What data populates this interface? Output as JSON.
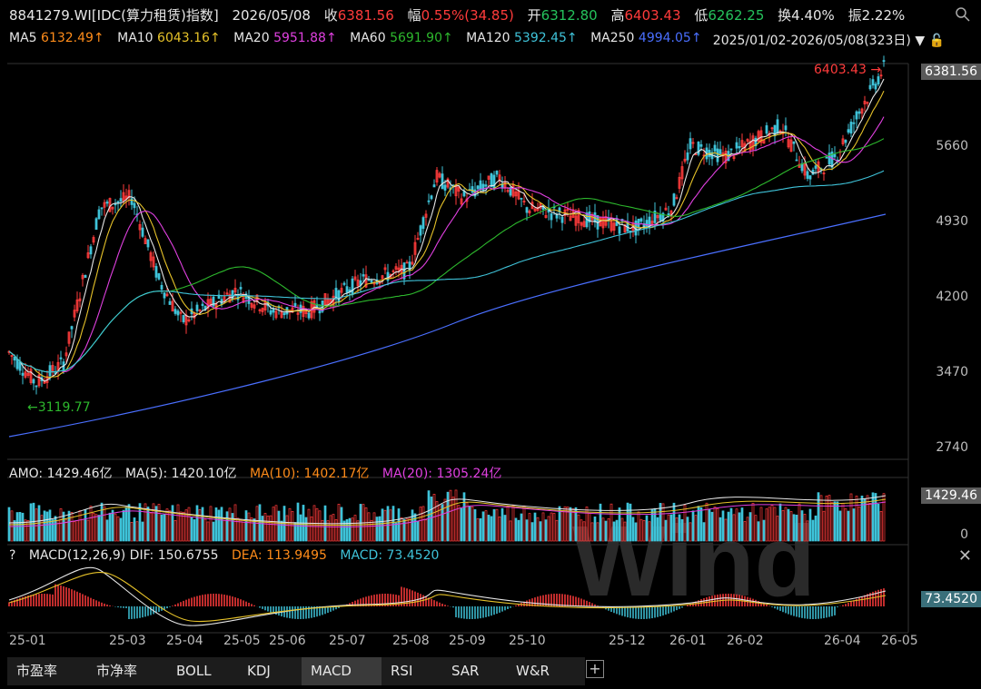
{
  "header": {
    "code": "8841279.WI[IDC(算力租赁)指数]",
    "date": "2026/05/08",
    "close_label": "收",
    "close_value": "6381.56",
    "change_label": "幅",
    "change_value": "0.55%(34.85)",
    "open_label": "开",
    "open_value": "6312.80",
    "high_label": "高",
    "high_value": "6403.43",
    "low_label": "低",
    "low_value": "6262.25",
    "turnover_label": "换",
    "turnover_value": "4.40%",
    "amplitude_label": "振",
    "amplitude_value": "2.22%"
  },
  "ma_bar": {
    "ma5_label": "MA5",
    "ma5_value": "6132.49↑",
    "ma10_label": "MA10",
    "ma10_value": "6043.16↑",
    "ma20_label": "MA20",
    "ma20_value": "5951.88↑",
    "ma60_label": "MA60",
    "ma60_value": "5691.90↑",
    "ma120_label": "MA120",
    "ma120_value": "5392.45↑",
    "ma250_label": "MA250",
    "ma250_value": "4994.05↑",
    "range": "2025/01/02-2026/05/08(323日)"
  },
  "price_axis": [
    "5660",
    "4930",
    "4200",
    "3470",
    "2740"
  ],
  "current_price": "6381.56",
  "high_marker": "6403.43",
  "low_marker": "←3119.77",
  "amo": {
    "label": "AMO: 1429.46亿",
    "ma5": "MA(5): 1420.10亿",
    "ma10": "MA(10): 1402.17亿",
    "ma20": "MA(20): 1305.24亿",
    "current": "1429.46",
    "zero": "0"
  },
  "macd": {
    "help": "?",
    "label": "MACD(12,26,9)",
    "dif": "DIF: 150.6755",
    "dea": "DEA: 113.9495",
    "macd": "MACD: 73.4520",
    "current": "73.4520",
    "close": "✕"
  },
  "x_axis": [
    "25-01",
    "25-03",
    "25-04",
    "25-05",
    "25-06",
    "25-07",
    "25-08",
    "25-09",
    "25-10",
    "25-12",
    "26-01",
    "26-02",
    "26-04",
    "26-05"
  ],
  "tabs": [
    "市盈率",
    "市净率",
    "BOLL",
    "KDJ",
    "MACD",
    "RSI",
    "SAR",
    "W&R"
  ],
  "active_tab": "MACD",
  "watermark": "Wind",
  "colors": {
    "up": "#ff3b3b",
    "down": "#3fc3d9",
    "ma5": "#e6e6e6",
    "ma10": "#e6c229",
    "ma20": "#e040e0",
    "ma60": "#2db82d",
    "ma120": "#3fc3d9",
    "ma250": "#4a6fff"
  }
}
